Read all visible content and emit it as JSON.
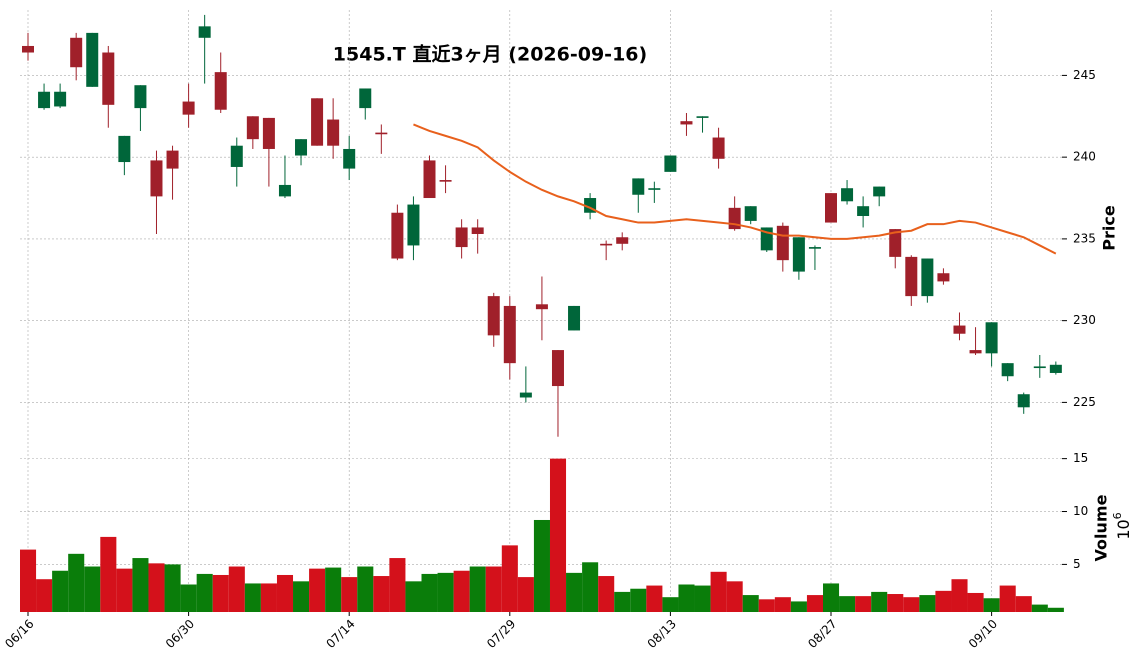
{
  "chart_data": {
    "type": "candlestick",
    "title": "1545.T  直近3ヶ月  (2026-09-16)",
    "categories": [
      "06/16",
      null,
      null,
      null,
      null,
      null,
      null,
      null,
      null,
      null,
      "06/30",
      null,
      null,
      null,
      null,
      null,
      null,
      null,
      null,
      null,
      "07/14",
      null,
      null,
      null,
      null,
      null,
      null,
      null,
      null,
      null,
      "07/29",
      null,
      null,
      null,
      null,
      null,
      null,
      null,
      null,
      null,
      "08/13",
      null,
      null,
      null,
      null,
      null,
      null,
      null,
      null,
      null,
      "08/27",
      null,
      null,
      null,
      null,
      null,
      null,
      null,
      null,
      null,
      "09/10",
      null,
      null,
      null,
      null
    ],
    "open": [
      246.8,
      243.0,
      243.1,
      247.3,
      244.3,
      246.4,
      239.7,
      243.0,
      239.8,
      240.4,
      243.4,
      247.3,
      245.2,
      239.4,
      242.5,
      242.4,
      237.6,
      240.1,
      243.6,
      242.3,
      239.3,
      243.0,
      241.5,
      236.6,
      234.6,
      239.8,
      238.6,
      235.7,
      235.7,
      231.5,
      230.9,
      225.3,
      231.0,
      228.2,
      229.4,
      236.6,
      234.7,
      235.1,
      237.7,
      238.0,
      239.1,
      242.2,
      242.4,
      241.2,
      236.9,
      236.1,
      234.3,
      235.8,
      233.0,
      234.4,
      237.8,
      237.3,
      236.4,
      237.6,
      235.6,
      233.9,
      231.5,
      232.9,
      229.7,
      228.2,
      228.0,
      226.6,
      224.7,
      227.1,
      226.8
    ],
    "high": [
      247.6,
      244.5,
      244.5,
      247.6,
      247.6,
      246.8,
      241.3,
      244.4,
      240.4,
      240.7,
      244.5,
      248.7,
      246.4,
      241.2,
      242.5,
      242.4,
      240.1,
      241.1,
      243.6,
      243.6,
      241.3,
      244.2,
      242.0,
      237.1,
      237.6,
      240.1,
      239.5,
      236.2,
      236.2,
      231.7,
      231.5,
      227.2,
      232.7,
      228.2,
      230.9,
      237.8,
      234.9,
      235.4,
      238.7,
      238.5,
      240.1,
      242.7,
      242.5,
      241.8,
      237.6,
      237.0,
      235.7,
      236.0,
      235.1,
      234.6,
      237.8,
      238.6,
      237.6,
      238.2,
      235.6,
      234.0,
      233.8,
      233.2,
      230.5,
      229.6,
      229.9,
      227.4,
      225.6,
      227.9,
      227.5
    ],
    "low": [
      245.9,
      242.9,
      243.0,
      244.7,
      244.3,
      241.8,
      238.9,
      241.6,
      235.3,
      237.4,
      241.8,
      244.5,
      242.7,
      238.2,
      240.5,
      238.2,
      237.5,
      239.5,
      240.7,
      239.9,
      238.6,
      242.3,
      240.2,
      233.7,
      233.7,
      237.5,
      237.8,
      233.8,
      234.1,
      228.4,
      226.4,
      225.0,
      228.8,
      222.9,
      229.4,
      236.2,
      233.7,
      234.3,
      236.6,
      237.2,
      239.1,
      241.3,
      241.5,
      239.3,
      235.5,
      235.9,
      234.2,
      233.0,
      232.5,
      233.1,
      236.0,
      237.1,
      235.7,
      237.0,
      233.2,
      230.9,
      231.1,
      232.2,
      228.8,
      227.9,
      227.2,
      226.3,
      224.3,
      226.5,
      226.7
    ],
    "close": [
      246.4,
      244.0,
      244.0,
      245.5,
      247.6,
      243.2,
      241.3,
      244.4,
      237.6,
      239.3,
      242.6,
      248.0,
      242.9,
      240.7,
      241.1,
      240.5,
      238.3,
      241.1,
      240.7,
      240.7,
      240.5,
      244.2,
      241.4,
      233.8,
      237.1,
      237.5,
      238.5,
      234.5,
      235.3,
      229.1,
      227.4,
      225.6,
      230.7,
      226.0,
      230.9,
      237.5,
      234.6,
      234.7,
      238.7,
      238.1,
      240.1,
      242.0,
      242.5,
      239.9,
      235.6,
      237.0,
      235.7,
      233.7,
      235.1,
      234.5,
      236.0,
      238.1,
      237.0,
      238.2,
      233.9,
      231.5,
      233.8,
      232.4,
      229.2,
      228.0,
      229.9,
      227.4,
      225.5,
      227.2,
      227.3
    ],
    "up_color": "#00663a",
    "down_color": "#a0202a",
    "ylim": [
      222.7,
      249
    ],
    "yticks": [
      225,
      230,
      235,
      240,
      245
    ],
    "ylabel": "Price",
    "grid": true,
    "ma": {
      "color": "#e8601c",
      "values": [
        null,
        null,
        null,
        null,
        null,
        null,
        null,
        null,
        null,
        null,
        null,
        null,
        null,
        null,
        null,
        null,
        null,
        null,
        null,
        null,
        null,
        null,
        null,
        null,
        242.0,
        241.6,
        241.3,
        241.0,
        240.6,
        239.8,
        239.1,
        238.5,
        238.0,
        237.6,
        237.3,
        236.9,
        236.4,
        236.2,
        236.0,
        236.0,
        236.1,
        236.2,
        236.1,
        236.0,
        235.9,
        235.7,
        235.4,
        235.2,
        235.2,
        235.1,
        235.0,
        235.0,
        235.1,
        235.2,
        235.4,
        235.5,
        235.9,
        235.9,
        236.1,
        236.0,
        235.7,
        235.4,
        235.1,
        234.6,
        234.1
      ]
    },
    "volume": {
      "values": [
        6.4,
        3.6,
        4.4,
        6.0,
        4.8,
        7.6,
        4.6,
        5.6,
        5.1,
        5.0,
        3.1,
        4.1,
        4.0,
        4.8,
        3.2,
        3.2,
        4.0,
        3.4,
        4.6,
        4.7,
        3.8,
        4.8,
        3.9,
        5.6,
        3.4,
        4.1,
        4.2,
        4.4,
        4.8,
        4.8,
        6.8,
        3.8,
        9.2,
        15.0,
        4.2,
        5.2,
        3.9,
        2.4,
        2.7,
        3.0,
        1.9,
        3.1,
        3.0,
        4.3,
        3.4,
        2.1,
        1.7,
        1.9,
        1.5,
        2.1,
        3.2,
        2.0,
        2.0,
        2.4,
        2.2,
        1.9,
        2.1,
        2.5,
        3.6,
        2.3,
        1.8,
        3.0,
        2.0,
        1.2,
        0.9
      ],
      "up_color": "#0a7d0a",
      "down_color": "#d4111b",
      "ylim": [
        0.5,
        16.1
      ],
      "yticks": [
        5,
        10,
        15
      ],
      "ylabel": "Volume",
      "scale_base": "10",
      "scale_exponent": "6"
    }
  }
}
